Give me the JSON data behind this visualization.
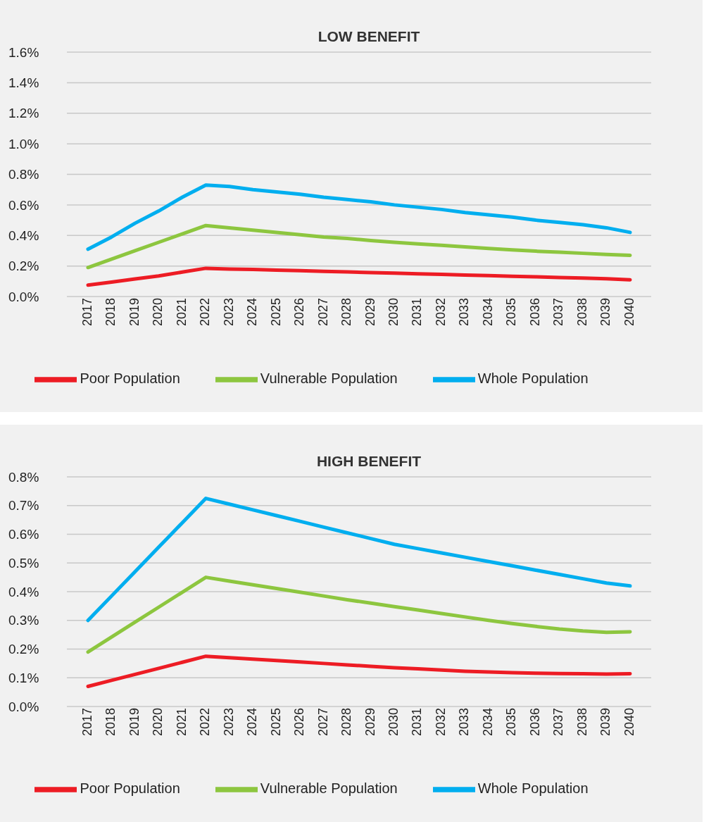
{
  "chart_data": [
    {
      "type": "line",
      "title": "LOW BENEFIT",
      "categories": [
        "2017",
        "2018",
        "2019",
        "2020",
        "2021",
        "2022",
        "2023",
        "2024",
        "2025",
        "2026",
        "2027",
        "2028",
        "2029",
        "2030",
        "2031",
        "2032",
        "2033",
        "2034",
        "2035",
        "2036",
        "2037",
        "2038",
        "2039",
        "2040"
      ],
      "series": [
        {
          "name": "Whole Population",
          "color": "#00aeef",
          "values": [
            0.31,
            0.39,
            0.48,
            0.56,
            0.65,
            0.73,
            0.72,
            0.7,
            0.685,
            0.67,
            0.65,
            0.635,
            0.62,
            0.6,
            0.585,
            0.57,
            0.55,
            0.535,
            0.52,
            0.5,
            0.485,
            0.47,
            0.45,
            0.42
          ]
        },
        {
          "name": "Poor Population",
          "color": "#ed1c24",
          "values": [
            0.075,
            0.095,
            0.115,
            0.135,
            0.16,
            0.185,
            0.18,
            0.177,
            0.173,
            0.169,
            0.165,
            0.161,
            0.157,
            0.153,
            0.149,
            0.145,
            0.141,
            0.137,
            0.133,
            0.129,
            0.125,
            0.121,
            0.117,
            0.11
          ]
        },
        {
          "name": "Vulnerable Population",
          "color": "#8dc63f",
          "values": [
            0.19,
            0.245,
            0.3,
            0.355,
            0.41,
            0.465,
            0.45,
            0.435,
            0.42,
            0.405,
            0.39,
            0.38,
            0.367,
            0.355,
            0.345,
            0.335,
            0.325,
            0.315,
            0.305,
            0.297,
            0.29,
            0.283,
            0.276,
            0.27
          ]
        }
      ],
      "ylim": [
        0,
        1.6
      ],
      "yticks": [
        {
          "value": 0,
          "label": "0.0%"
        },
        {
          "value": 0.2,
          "label": "0.2%"
        },
        {
          "value": 0.4,
          "label": "0.4%"
        },
        {
          "value": 0.6,
          "label": "0.6%"
        },
        {
          "value": 0.8,
          "label": "0.8%"
        },
        {
          "value": 1.0,
          "label": "1.0%"
        },
        {
          "value": 1.2,
          "label": "1.2%"
        },
        {
          "value": 1.4,
          "label": "1.4%"
        },
        {
          "value": 1.6,
          "label": "1.6%"
        }
      ],
      "grid": "y",
      "legend": "bottom",
      "marker": "none",
      "line_style": "solid"
    },
    {
      "type": "line",
      "title": "HIGH BENEFIT",
      "categories": [
        "2017",
        "2018",
        "2019",
        "2020",
        "2021",
        "2022",
        "2023",
        "2024",
        "2025",
        "2026",
        "2027",
        "2028",
        "2029",
        "2030",
        "2031",
        "2032",
        "2033",
        "2034",
        "2035",
        "2036",
        "2037",
        "2038",
        "2039",
        "2040"
      ],
      "series": [
        {
          "name": "Whole Population",
          "color": "#00aeef",
          "values": [
            0.3,
            0.385,
            0.47,
            0.555,
            0.64,
            0.725,
            0.705,
            0.685,
            0.665,
            0.645,
            0.625,
            0.605,
            0.585,
            0.565,
            0.55,
            0.535,
            0.52,
            0.505,
            0.49,
            0.475,
            0.46,
            0.445,
            0.43,
            0.42
          ]
        },
        {
          "name": "Poor Population",
          "color": "#ed1c24",
          "values": [
            0.07,
            0.091,
            0.112,
            0.133,
            0.154,
            0.175,
            0.17,
            0.165,
            0.16,
            0.155,
            0.15,
            0.145,
            0.14,
            0.135,
            0.131,
            0.127,
            0.123,
            0.12,
            0.118,
            0.116,
            0.115,
            0.114,
            0.113,
            0.114
          ]
        },
        {
          "name": "Vulnerable Population",
          "color": "#8dc63f",
          "values": [
            0.19,
            0.242,
            0.294,
            0.346,
            0.398,
            0.45,
            0.437,
            0.424,
            0.411,
            0.398,
            0.385,
            0.372,
            0.36,
            0.348,
            0.336,
            0.324,
            0.312,
            0.3,
            0.289,
            0.279,
            0.27,
            0.263,
            0.258,
            0.26
          ]
        }
      ],
      "ylim": [
        0,
        0.8
      ],
      "yticks": [
        {
          "value": 0,
          "label": "0.0%"
        },
        {
          "value": 0.1,
          "label": "0.1%"
        },
        {
          "value": 0.2,
          "label": "0.2%"
        },
        {
          "value": 0.3,
          "label": "0.3%"
        },
        {
          "value": 0.4,
          "label": "0.4%"
        },
        {
          "value": 0.5,
          "label": "0.5%"
        },
        {
          "value": 0.6,
          "label": "0.6%"
        },
        {
          "value": 0.7,
          "label": "0.7%"
        },
        {
          "value": 0.8,
          "label": "0.8%"
        }
      ],
      "grid": "y",
      "legend": "bottom",
      "marker": "none",
      "line_style": "solid"
    }
  ]
}
